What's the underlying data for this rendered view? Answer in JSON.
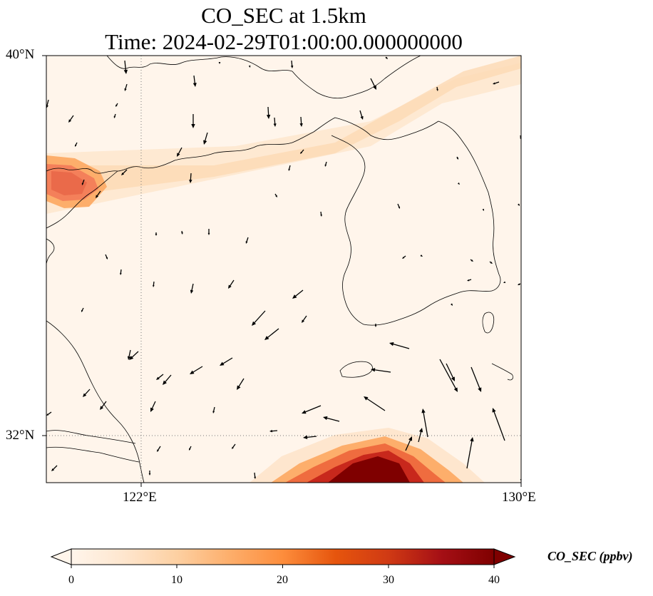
{
  "title": {
    "line1": "CO_SEC at 1.5km",
    "line2": "Time: 2024-02-29T01:00:00.000000000"
  },
  "map": {
    "lon_range": [
      119,
      130
    ],
    "lat_range": [
      31,
      40
    ],
    "lat_ticks": [
      {
        "value": 40,
        "label": "40°N"
      },
      {
        "value": 32,
        "label": "32°N"
      }
    ],
    "lon_ticks": [
      {
        "value": 122,
        "label": "122°E"
      },
      {
        "value": 130,
        "label": "130°E"
      }
    ],
    "gridlines": "dotted",
    "field_colormap": [
      "#fff5eb",
      "#fee6ce",
      "#fdd0a2",
      "#fdae6b",
      "#fd8d3c",
      "#e6550d",
      "#d03a14",
      "#a50f15",
      "#7f0000"
    ]
  },
  "colorbar": {
    "title": "CO_SEC (ppbv)",
    "min": 0,
    "max": 40,
    "ticks": [
      {
        "value": 0,
        "label": "0"
      },
      {
        "value": 10,
        "label": "10"
      },
      {
        "value": 20,
        "label": "20"
      },
      {
        "value": 30,
        "label": "30"
      },
      {
        "value": 40,
        "label": "40"
      }
    ],
    "extend": "both"
  }
}
